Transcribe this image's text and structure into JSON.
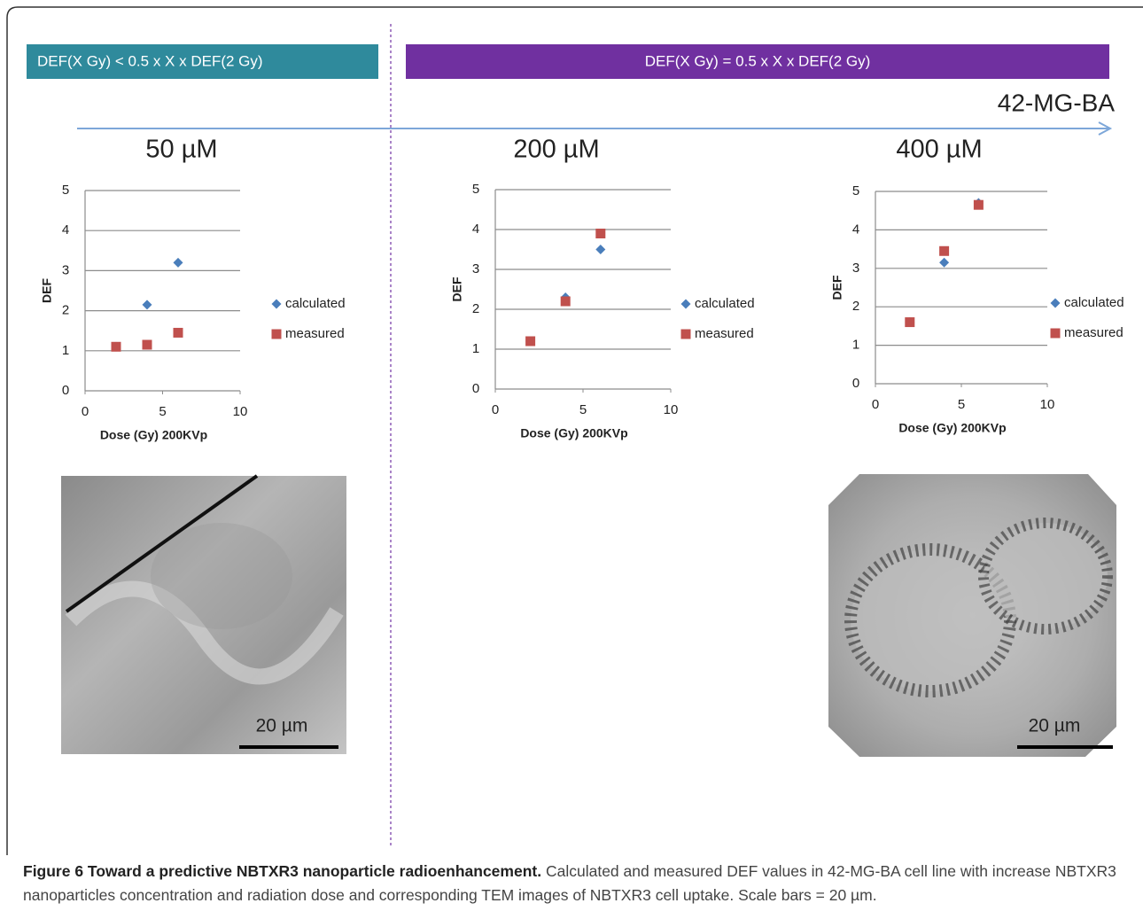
{
  "banners": [
    "DEF(X Gy) < 0.5 x X x DEF(2 Gy)",
    "DEF(X Gy)  = 0.5 x X x DEF(2 Gy)"
  ],
  "cell_line": "42-MG-BA",
  "chart_data": [
    {
      "type": "scatter",
      "title": "50 µM",
      "x_label": "Dose (Gy) 200KVp",
      "y_label": "DEF",
      "xlim": [
        0,
        10
      ],
      "xticks": [
        0,
        5,
        10
      ],
      "ylim": [
        0,
        5
      ],
      "yticks": [
        0,
        1,
        2,
        3,
        4,
        5
      ],
      "grid": true,
      "legend": "right",
      "series": [
        {
          "name": "calculated",
          "color": "#4a7ebb",
          "marker": "diamond",
          "x": [
            2,
            4,
            6
          ],
          "values": [
            1.1,
            2.15,
            3.2
          ]
        },
        {
          "name": "measured",
          "color": "#c0504d",
          "marker": "square",
          "x": [
            2,
            4,
            6
          ],
          "values": [
            1.1,
            1.15,
            1.45
          ]
        }
      ]
    },
    {
      "type": "scatter",
      "title": "200 µM",
      "x_label": "Dose (Gy) 200KVp",
      "y_label": "DEF",
      "xlim": [
        0,
        10
      ],
      "xticks": [
        0,
        5,
        10
      ],
      "ylim": [
        0,
        5
      ],
      "yticks": [
        0,
        1,
        2,
        3,
        4,
        5
      ],
      "grid": true,
      "legend": "right",
      "series": [
        {
          "name": "calculated",
          "color": "#4a7ebb",
          "marker": "diamond",
          "x": [
            2,
            4,
            6
          ],
          "values": [
            1.2,
            2.3,
            3.5
          ]
        },
        {
          "name": "measured",
          "color": "#c0504d",
          "marker": "square",
          "x": [
            2,
            4,
            6
          ],
          "values": [
            1.2,
            2.2,
            3.9
          ]
        }
      ]
    },
    {
      "type": "scatter",
      "title": "400 µM",
      "x_label": "Dose (Gy) 200KVp",
      "y_label": "DEF",
      "xlim": [
        0,
        10
      ],
      "xticks": [
        0,
        5,
        10
      ],
      "ylim": [
        0,
        5
      ],
      "yticks": [
        0,
        1,
        2,
        3,
        4,
        5
      ],
      "grid": true,
      "legend": "right",
      "series": [
        {
          "name": "calculated",
          "color": "#4a7ebb",
          "marker": "diamond",
          "x": [
            2,
            4,
            6
          ],
          "values": [
            1.6,
            3.15,
            4.7
          ]
        },
        {
          "name": "measured",
          "color": "#c0504d",
          "marker": "square",
          "x": [
            2,
            4,
            6
          ],
          "values": [
            1.6,
            3.45,
            4.65
          ]
        }
      ]
    }
  ],
  "images": [
    {
      "scale_label": "20 µm"
    },
    {
      "scale_label": "20 µm"
    }
  ],
  "caption": {
    "label": "Figure 6 Toward a predictive NBTXR3 nanoparticle radioenhancement.",
    "text": "Calculated and measured DEF values in 42-MG-BA cell line with increase NBTXR3 nanoparticles concentration and radiation dose and corresponding TEM images of NBTXR3 cell uptake. Scale bars = 20 µm."
  }
}
